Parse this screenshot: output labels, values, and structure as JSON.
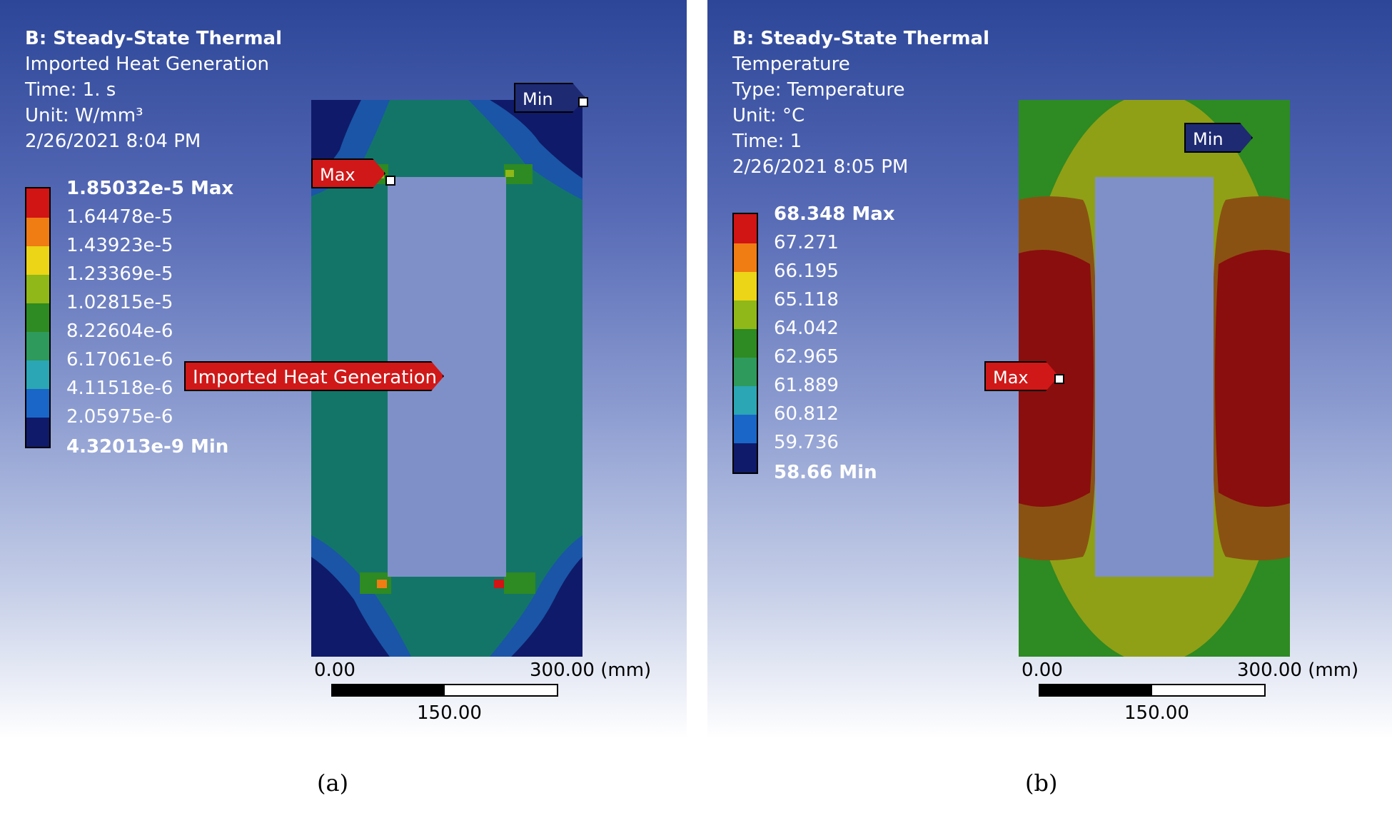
{
  "panel_a": {
    "header": [
      "B: Steady-State Thermal",
      "Imported Heat Generation",
      "Time: 1. s",
      "Unit: W/mm³",
      "2/26/2021 8:04 PM"
    ],
    "legend": [
      {
        "label": "1.85032e-5 Max",
        "bold": true,
        "color": "#d11414"
      },
      {
        "label": "1.64478e-5",
        "bold": false,
        "color": "#f07c14"
      },
      {
        "label": "1.43923e-5",
        "bold": false,
        "color": "#ecd416"
      },
      {
        "label": "1.23369e-5",
        "bold": false,
        "color": "#8fb818"
      },
      {
        "label": "1.02815e-5",
        "bold": false,
        "color": "#2e8a22"
      },
      {
        "label": "8.22604e-6",
        "bold": false,
        "color": "#2e9a5c"
      },
      {
        "label": "6.17061e-6",
        "bold": false,
        "color": "#2aa6b4"
      },
      {
        "label": "4.11518e-6",
        "bold": false,
        "color": "#1a66c8"
      },
      {
        "label": "2.05975e-6",
        "bold": false,
        "color": "#101a6a"
      },
      {
        "label": "4.32013e-9 Min",
        "bold": true,
        "color": null
      }
    ],
    "tags": {
      "min": "Min",
      "max": "Max",
      "result": "Imported Heat Generation"
    },
    "scale": {
      "left": "0.00",
      "right": "300.00 (mm)",
      "mid": "150.00"
    },
    "caption": "(a)"
  },
  "panel_b": {
    "header": [
      "B: Steady-State Thermal",
      "Temperature",
      "Type: Temperature",
      "Unit: °C",
      "Time: 1",
      "2/26/2021 8:05 PM"
    ],
    "legend": [
      {
        "label": "68.348 Max",
        "bold": true,
        "color": "#d11414"
      },
      {
        "label": "67.271",
        "bold": false,
        "color": "#f07c14"
      },
      {
        "label": "66.195",
        "bold": false,
        "color": "#ecd416"
      },
      {
        "label": "65.118",
        "bold": false,
        "color": "#8fb818"
      },
      {
        "label": "64.042",
        "bold": false,
        "color": "#2e8a22"
      },
      {
        "label": "62.965",
        "bold": false,
        "color": "#2e9a5c"
      },
      {
        "label": "61.889",
        "bold": false,
        "color": "#2aa6b4"
      },
      {
        "label": "60.812",
        "bold": false,
        "color": "#1a66c8"
      },
      {
        "label": "59.736",
        "bold": false,
        "color": "#101a6a"
      },
      {
        "label": "58.66 Min",
        "bold": true,
        "color": null
      }
    ],
    "tags": {
      "min": "Min",
      "max": "Max"
    },
    "scale": {
      "left": "0.00",
      "right": "300.00 (mm)",
      "mid": "150.00"
    },
    "caption": "(b)"
  }
}
